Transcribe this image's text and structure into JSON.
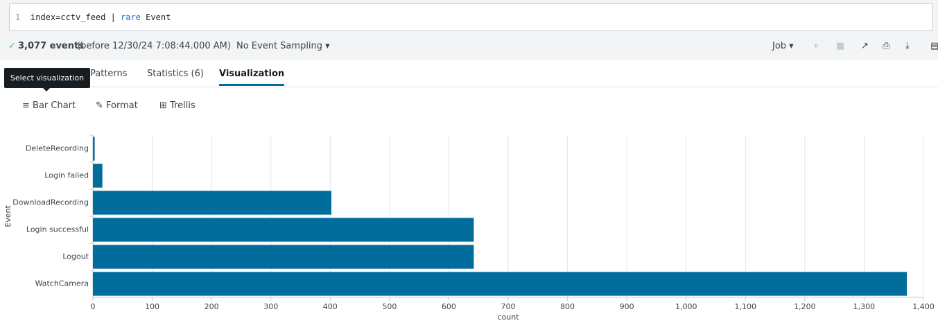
{
  "search": {
    "line_number": "1",
    "query_start": "index=cctv_feed | ",
    "query_command": "rare",
    "query_end": " Event"
  },
  "status": {
    "event_count": "3,077 events",
    "before": "(before 12/30/24 7:08:44.000 AM)",
    "sampling": "No Event Sampling",
    "job": "Job"
  },
  "tabs": [
    "Patterns",
    "Statistics (6)",
    "Visualization"
  ],
  "tooltip": "Select visualization",
  "toolbar": [
    "Bar Chart",
    "Format",
    "Trellis"
  ],
  "chart_data": {
    "type": "bar",
    "orientation": "horizontal",
    "ylabel": "Event",
    "xlabel": "count",
    "categories": [
      "DeleteRecording",
      "Login failed",
      "DownloadRecording",
      "Login successful",
      "Logout",
      "WatchCamera"
    ],
    "values": [
      3,
      16,
      402,
      642,
      642,
      1372
    ],
    "color": "#006d9c",
    "xlim": [
      0,
      1400
    ],
    "xticks": [
      0,
      100,
      200,
      300,
      400,
      500,
      600,
      700,
      800,
      900,
      {
        "value": 1000,
        "label": "1,000"
      },
      {
        "value": 1100,
        "label": "1,100"
      },
      {
        "value": 1200,
        "label": "1,200"
      },
      {
        "value": 1300,
        "label": "1,300"
      },
      {
        "value": 1400,
        "label": "1,400"
      }
    ],
    "grid": true
  }
}
